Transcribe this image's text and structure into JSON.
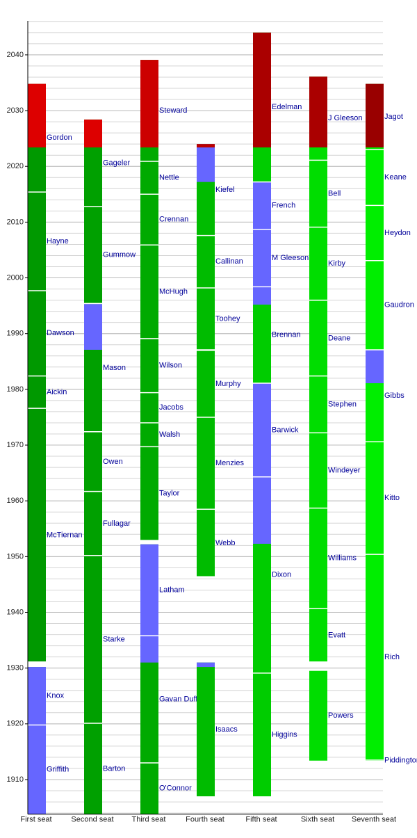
{
  "chart_data": {
    "type": "timeline",
    "ylim": [
      1903.8,
      2046.1
    ],
    "yticks": [
      1910,
      1920,
      1930,
      1940,
      1950,
      1960,
      1970,
      1980,
      1990,
      2000,
      2010,
      2020,
      2030,
      2040
    ],
    "minor_grid_step": 2,
    "grid": true,
    "today": 2023.4,
    "chief_color": "#6666ff",
    "series": [
      {
        "name": "First seat",
        "color": "#009900",
        "future_color": "#dd0000",
        "justices": [
          {
            "name": "Griffith",
            "start": 1903.8,
            "end": 1919.8,
            "chief": [
              1903.8,
              1919.8
            ]
          },
          {
            "name": "Knox",
            "start": 1919.8,
            "end": 1930.2,
            "chief": [
              1919.8,
              1930.2
            ]
          },
          {
            "name": "McTiernan",
            "start": 1931.1,
            "end": 1976.6
          },
          {
            "name": "Aickin",
            "start": 1976.6,
            "end": 1982.4
          },
          {
            "name": "Dawson",
            "start": 1982.4,
            "end": 1997.7
          },
          {
            "name": "Hayne",
            "start": 1997.7,
            "end": 2015.4
          },
          {
            "name": "Gordon",
            "start": 2015.4,
            "end": 2034.8
          }
        ]
      },
      {
        "name": "Second seat",
        "color": "#00a000",
        "future_color": "#dd0000",
        "justices": [
          {
            "name": "Barton",
            "start": 1903.8,
            "end": 1920.1
          },
          {
            "name": "Starke",
            "start": 1920.1,
            "end": 1950.1
          },
          {
            "name": "Fullagar",
            "start": 1950.2,
            "end": 1961.6
          },
          {
            "name": "Owen",
            "start": 1961.7,
            "end": 1972.3
          },
          {
            "name": "Mason",
            "start": 1972.4,
            "end": 1995.3,
            "chief": [
              1987.1,
              1995.3
            ]
          },
          {
            "name": "Gummow",
            "start": 1995.4,
            "end": 2012.8
          },
          {
            "name": "Gageler",
            "start": 2012.8,
            "end": 2028.4
          }
        ]
      },
      {
        "name": "Third seat",
        "color": "#00aa00",
        "future_color": "#cc0000",
        "justices": [
          {
            "name": "O'Connor",
            "start": 1903.8,
            "end": 1913.0
          },
          {
            "name": "Gavan Duffy",
            "start": 1913.0,
            "end": 1935.8,
            "chief": [
              1931.0,
              1935.8
            ]
          },
          {
            "name": "Latham",
            "start": 1935.8,
            "end": 1952.2,
            "chief": [
              1935.8,
              1952.2
            ]
          },
          {
            "name": "Taylor",
            "start": 1952.9,
            "end": 1969.7
          },
          {
            "name": "Walsh",
            "start": 1969.7,
            "end": 1974.0
          },
          {
            "name": "Jacobs",
            "start": 1974.0,
            "end": 1979.4
          },
          {
            "name": "Wilson",
            "start": 1979.4,
            "end": 1989.1
          },
          {
            "name": "McHugh",
            "start": 1989.1,
            "end": 2005.9
          },
          {
            "name": "Crennan",
            "start": 2005.9,
            "end": 2015.0
          },
          {
            "name": "Nettle",
            "start": 2015.0,
            "end": 2020.9
          },
          {
            "name": "Steward",
            "start": 2020.9,
            "end": 2039.1
          }
        ]
      },
      {
        "name": "Fourth seat",
        "color": "#00bb00",
        "future_color": "#bb0000",
        "justices": [
          {
            "name": "Isaacs",
            "start": 1907.0,
            "end": 1931.0,
            "chief": [
              1930.2,
              1931.0
            ]
          },
          {
            "name": "Webb",
            "start": 1946.4,
            "end": 1958.4
          },
          {
            "name": "Menzies",
            "start": 1958.5,
            "end": 1975.0
          },
          {
            "name": "Murphy",
            "start": 1975.0,
            "end": 1986.9
          },
          {
            "name": "Toohey",
            "start": 1987.1,
            "end": 1998.2
          },
          {
            "name": "Callinan",
            "start": 1998.2,
            "end": 2007.6
          },
          {
            "name": "Kiefel",
            "start": 2007.6,
            "end": 2024.0,
            "chief": [
              2017.2,
              2024.0
            ]
          }
        ]
      },
      {
        "name": "Fifth seat",
        "color": "#00cc00",
        "future_color": "#aa0000",
        "justices": [
          {
            "name": "Higgins",
            "start": 1907.0,
            "end": 1929.1
          },
          {
            "name": "Dixon",
            "start": 1929.1,
            "end": 1964.3,
            "chief": [
              1952.3,
              1964.3
            ]
          },
          {
            "name": "Barwick",
            "start": 1964.3,
            "end": 1981.1,
            "chief": [
              1964.3,
              1981.1
            ]
          },
          {
            "name": "Brennan",
            "start": 1981.1,
            "end": 1998.4,
            "chief": [
              1995.2,
              1998.4
            ]
          },
          {
            "name": "M Gleeson",
            "start": 1998.4,
            "end": 2008.7,
            "chief": [
              1998.4,
              2008.7
            ]
          },
          {
            "name": "French",
            "start": 2008.7,
            "end": 2017.2,
            "chief": [
              2008.7,
              2017.2
            ]
          },
          {
            "name": "Edelman",
            "start": 2017.2,
            "end": 2044.0
          }
        ]
      },
      {
        "name": "Sixth seat",
        "color": "#00dd00",
        "future_color": "#aa0000",
        "justices": [
          {
            "name": "Powers",
            "start": 1913.4,
            "end": 1929.5
          },
          {
            "name": "Evatt",
            "start": 1931.1,
            "end": 1940.7
          },
          {
            "name": "Williams",
            "start": 1940.7,
            "end": 1958.7
          },
          {
            "name": "Windeyer",
            "start": 1958.7,
            "end": 1972.2
          },
          {
            "name": "Stephen",
            "start": 1972.2,
            "end": 1982.4
          },
          {
            "name": "Deane",
            "start": 1982.4,
            "end": 1995.9
          },
          {
            "name": "Kirby",
            "start": 1996.0,
            "end": 2009.1
          },
          {
            "name": "Bell",
            "start": 2009.1,
            "end": 2021.1
          },
          {
            "name": "J Gleeson",
            "start": 2021.1,
            "end": 2036.1
          }
        ]
      },
      {
        "name": "Seventh seat",
        "color": "#00ee00",
        "future_color": "#990000",
        "justices": [
          {
            "name": "Piddington",
            "start": 1913.4,
            "end": 1913.5
          },
          {
            "name": "Rich",
            "start": 1913.5,
            "end": 1950.4
          },
          {
            "name": "Kitto",
            "start": 1950.4,
            "end": 1970.6
          },
          {
            "name": "Gibbs",
            "start": 1970.6,
            "end": 1987.1,
            "chief": [
              1981.1,
              1987.1
            ]
          },
          {
            "name": "Gaudron",
            "start": 1987.1,
            "end": 2003.1
          },
          {
            "name": "Heydon",
            "start": 2003.1,
            "end": 2013.0
          },
          {
            "name": "Keane",
            "start": 2013.0,
            "end": 2023.0
          },
          {
            "name": "Jagot",
            "start": 2023.0,
            "end": 2034.8
          }
        ]
      }
    ]
  }
}
